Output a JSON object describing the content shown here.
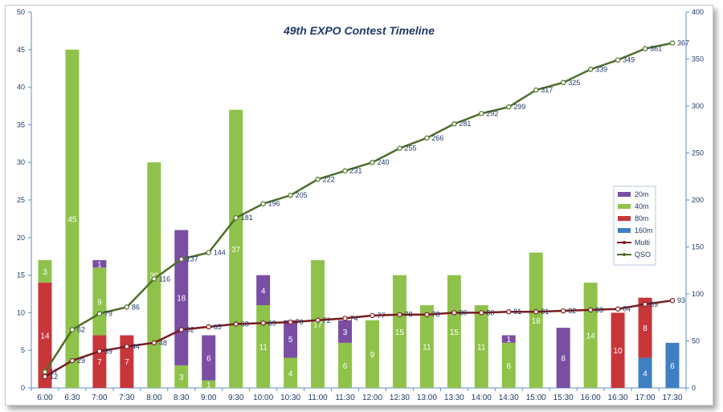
{
  "chart_data": {
    "type": "bar",
    "title": "49th EXPO Contest Timeline",
    "categories": [
      "6:00",
      "6:30",
      "7:00",
      "7:30",
      "8:00",
      "8:30",
      "9:00",
      "9:30",
      "10:00",
      "10:30",
      "11:00",
      "11:30",
      "12:00",
      "12:30",
      "13:00",
      "13:30",
      "14:00",
      "14:30",
      "15:00",
      "15:30",
      "16:00",
      "16:30",
      "17:00",
      "17:30"
    ],
    "stacked": true,
    "ylim": [
      0,
      50
    ],
    "y_ticks": [
      0,
      5,
      10,
      15,
      20,
      25,
      30,
      35,
      40,
      45,
      50
    ],
    "y2lim": [
      0,
      400
    ],
    "y2_ticks": [
      0,
      50,
      100,
      150,
      200,
      250,
      300,
      350,
      400
    ],
    "grid": false,
    "legend_position": "right",
    "series": [
      {
        "name": "160m",
        "kind": "bar",
        "color": "#3f7fc4",
        "values": [
          0,
          0,
          0,
          0,
          0,
          0,
          0,
          0,
          0,
          0,
          0,
          0,
          0,
          0,
          0,
          0,
          0,
          0,
          0,
          0,
          0,
          0,
          4,
          6
        ]
      },
      {
        "name": "80m",
        "kind": "bar",
        "color": "#c8363a",
        "values": [
          14,
          0,
          7,
          7,
          0,
          0,
          0,
          0,
          0,
          0,
          0,
          0,
          0,
          0,
          0,
          0,
          0,
          0,
          0,
          0,
          0,
          10,
          8,
          0
        ]
      },
      {
        "name": "40m",
        "kind": "bar",
        "color": "#8fc24a",
        "values": [
          3,
          45,
          9,
          0,
          30,
          3,
          1,
          37,
          11,
          4,
          17,
          6,
          9,
          15,
          11,
          15,
          11,
          6,
          18,
          0,
          14,
          0,
          0,
          0
        ]
      },
      {
        "name": "20m",
        "kind": "bar",
        "color": "#7a4ea3",
        "values": [
          0,
          0,
          1,
          0,
          0,
          18,
          6,
          0,
          4,
          5,
          0,
          3,
          0,
          0,
          0,
          0,
          0,
          1,
          0,
          8,
          0,
          0,
          0,
          0
        ]
      },
      {
        "name": "Multi",
        "kind": "line",
        "axis": "right",
        "color": "#7a1a1e",
        "values": [
          12,
          29,
          39,
          44,
          48,
          62,
          65,
          68,
          69,
          70,
          72,
          74,
          77,
          78,
          78,
          80,
          80,
          81,
          81,
          82,
          83,
          84,
          89,
          93
        ]
      },
      {
        "name": "QSO",
        "kind": "line",
        "axis": "right",
        "color": "#4f6e2a",
        "values": [
          17,
          62,
          79,
          86,
          116,
          137,
          144,
          181,
          196,
          205,
          222,
          231,
          240,
          255,
          266,
          281,
          292,
          299,
          317,
          325,
          339,
          349,
          361,
          367
        ]
      }
    ],
    "legend_order": [
      "20m",
      "40m",
      "80m",
      "160m",
      "Multi",
      "QSO"
    ]
  }
}
